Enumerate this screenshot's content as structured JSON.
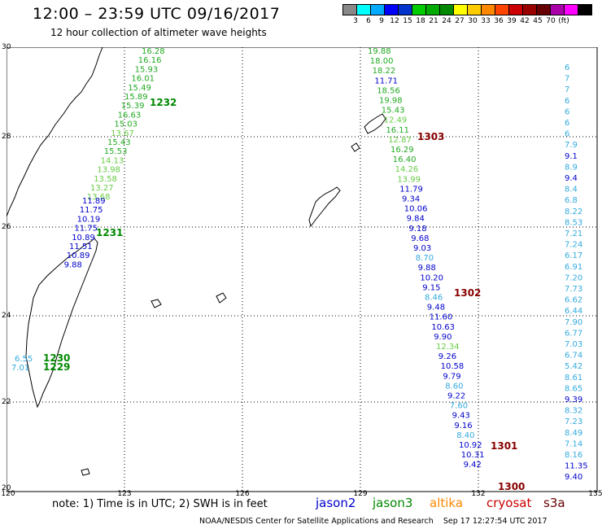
{
  "header": {
    "title": "12:00 – 23:59 UTC 09/16/2017",
    "subtitle": "12 hour collection of altimeter wave heights"
  },
  "colorbar": {
    "colors": [
      "#888888",
      "#00ffff",
      "#00aaff",
      "#0000ff",
      "#0033cc",
      "#00cc00",
      "#00aa00",
      "#008800",
      "#ffff00",
      "#ffcc00",
      "#ff8800",
      "#ff4400",
      "#cc0000",
      "#990000",
      "#660000",
      "#aa00aa",
      "#ff00ff",
      "#000000"
    ],
    "labels": [
      "3",
      "6",
      "9",
      "12",
      "15",
      "18",
      "21",
      "24",
      "27",
      "30",
      "33",
      "36",
      "39",
      "42",
      "45",
      "70",
      "(ft)"
    ]
  },
  "axes": {
    "lon_labels": [
      "120",
      "123",
      "126",
      "129",
      "132",
      "135"
    ],
    "lat_labels": [
      "30",
      "28",
      "26",
      "24",
      "22",
      "20"
    ]
  },
  "tracks": {
    "t1232": {
      "label": "1232",
      "values": [
        "16.28",
        "16.16",
        "15.93",
        "16.01",
        "15.49",
        "15.89",
        "15.39",
        "16.63",
        "15.03",
        "13.67",
        "15.43",
        "15.53",
        "14.13",
        "13.98",
        "13.58",
        "13.27",
        "13.68"
      ]
    },
    "t1231": {
      "label": "1231",
      "values": [
        "11.89",
        "11.75",
        "10.19",
        "11.75",
        "10.89",
        "11.51",
        "10.89",
        "9.88"
      ]
    },
    "t1230": {
      "label": "1230",
      "values": [
        "6.55"
      ]
    },
    "t1229": {
      "label": "1229",
      "values": [
        "7.01"
      ]
    },
    "t1303": {
      "label": "1303",
      "values": [
        "19.88",
        "18.00",
        "18.22",
        "11.71",
        "18.56",
        "19.98",
        "15.43",
        "12.49",
        "16.11",
        "12.87",
        "16.29",
        "16.40",
        "14.26",
        "13.99",
        "11.79",
        "9.34",
        "10.06",
        "9.84",
        "9.18",
        "9.68",
        "9.03",
        "8.70",
        "9.88",
        "10.20",
        "9.15",
        "8.46",
        "9.48",
        "11.60",
        "10.63",
        "9.90",
        "12.34",
        "9.26",
        "10.58",
        "9.79",
        "8.60",
        "9.22",
        "7.60",
        "9.43",
        "9.16",
        "8.40",
        "10.92",
        "10.31",
        "9.42"
      ]
    },
    "t1302": {
      "label": "1302"
    },
    "t1301": {
      "label": "1301"
    },
    "t1300": {
      "label": "1300"
    },
    "right_edge": {
      "values": [
        "6",
        "7",
        "7",
        "6",
        "6",
        "6",
        "6",
        "7.9",
        "9.1",
        "8.9",
        "9.4",
        "8.4",
        "6.8",
        "8.22",
        "8.53",
        "7.21",
        "7.24",
        "6.17",
        "6.91",
        "7.20",
        "7.73",
        "6.62",
        "6.44",
        "7.90",
        "6.77",
        "7.03",
        "6.74",
        "5.42",
        "8.61",
        "8.65",
        "9.39",
        "8.32",
        "7.23",
        "8.49",
        "7.14",
        "8.16",
        "11.35",
        "9.40"
      ]
    }
  },
  "legend": {
    "note": "note: 1) Time is in UTC; 2) SWH is in feet",
    "satellites": [
      "jason2",
      "jason3",
      "altika",
      "cryosat",
      "s3a"
    ]
  },
  "footer": {
    "credit": "NOAA/NESDIS Center for Satellite Applications and Research",
    "timestamp": "Sep 17 12:27:54 UTC 2017"
  }
}
